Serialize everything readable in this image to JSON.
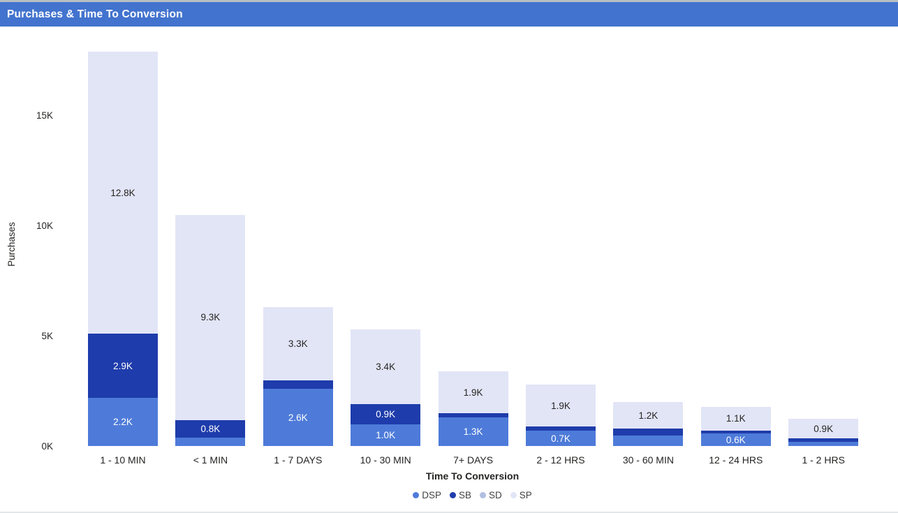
{
  "header": {
    "title": "Purchases & Time To Conversion",
    "bg_color": "#4273CE",
    "text_color": "#FFFFFF"
  },
  "chart_data": {
    "type": "bar",
    "stacked": true,
    "title": "Purchases & Time To Conversion",
    "xlabel": "Time To Conversion",
    "ylabel": "Purchases",
    "unit": "K",
    "ylim": [
      0,
      18
    ],
    "grid": false,
    "legend_position": "bottom",
    "yticks": [
      {
        "value": 0,
        "label": "0K"
      },
      {
        "value": 5,
        "label": "5K"
      },
      {
        "value": 10,
        "label": "10K"
      },
      {
        "value": 15,
        "label": "15K"
      }
    ],
    "categories": [
      "1 - 10 MIN",
      "< 1 MIN",
      "1 - 7 DAYS",
      "10 - 30 MIN",
      "7+ DAYS",
      "2 - 12 HRS",
      "30 - 60 MIN",
      "12 - 24 HRS",
      "1 - 2 HRS"
    ],
    "series": [
      {
        "name": "DSP",
        "color": "#4E7BD9",
        "label_color": "#FFFFFF",
        "values": [
          2.2,
          0.4,
          2.6,
          1.0,
          1.3,
          0.7,
          0.5,
          0.6,
          0.2
        ],
        "labels": [
          "2.2K",
          "",
          "2.6K",
          "1.0K",
          "1.3K",
          "0.7K",
          "",
          "0.6K",
          ""
        ]
      },
      {
        "name": "SB",
        "color": "#1E3CAB",
        "label_color": "#FFFFFF",
        "values": [
          2.9,
          0.8,
          0.4,
          0.9,
          0.2,
          0.2,
          0.3,
          0.1,
          0.15
        ],
        "labels": [
          "2.9K",
          "0.8K",
          "",
          "0.9K",
          "",
          "",
          "",
          "",
          ""
        ]
      },
      {
        "name": "SD",
        "color": "#B0BEE2",
        "label_color": "#252423",
        "values": [
          0,
          0,
          0,
          0,
          0,
          0,
          0,
          0,
          0
        ],
        "labels": [
          "",
          "",
          "",
          "",
          "",
          "",
          "",
          "",
          ""
        ]
      },
      {
        "name": "SP",
        "color": "#E2E5F6",
        "label_color": "#252423",
        "values": [
          12.8,
          9.3,
          3.3,
          3.4,
          1.9,
          1.9,
          1.2,
          1.1,
          0.9
        ],
        "labels": [
          "12.8K",
          "9.3K",
          "3.3K",
          "3.4K",
          "1.9K",
          "1.9K",
          "1.2K",
          "1.1K",
          "0.9K"
        ]
      }
    ],
    "legend": [
      {
        "name": "DSP",
        "color": "#4E7BD9"
      },
      {
        "name": "SB",
        "color": "#1E3CAB"
      },
      {
        "name": "SD",
        "color": "#B0BEE2"
      },
      {
        "name": "SP",
        "color": "#E2E5F6"
      }
    ]
  },
  "axis": {
    "y_title": "Purchases",
    "x_title": "Time To Conversion"
  }
}
